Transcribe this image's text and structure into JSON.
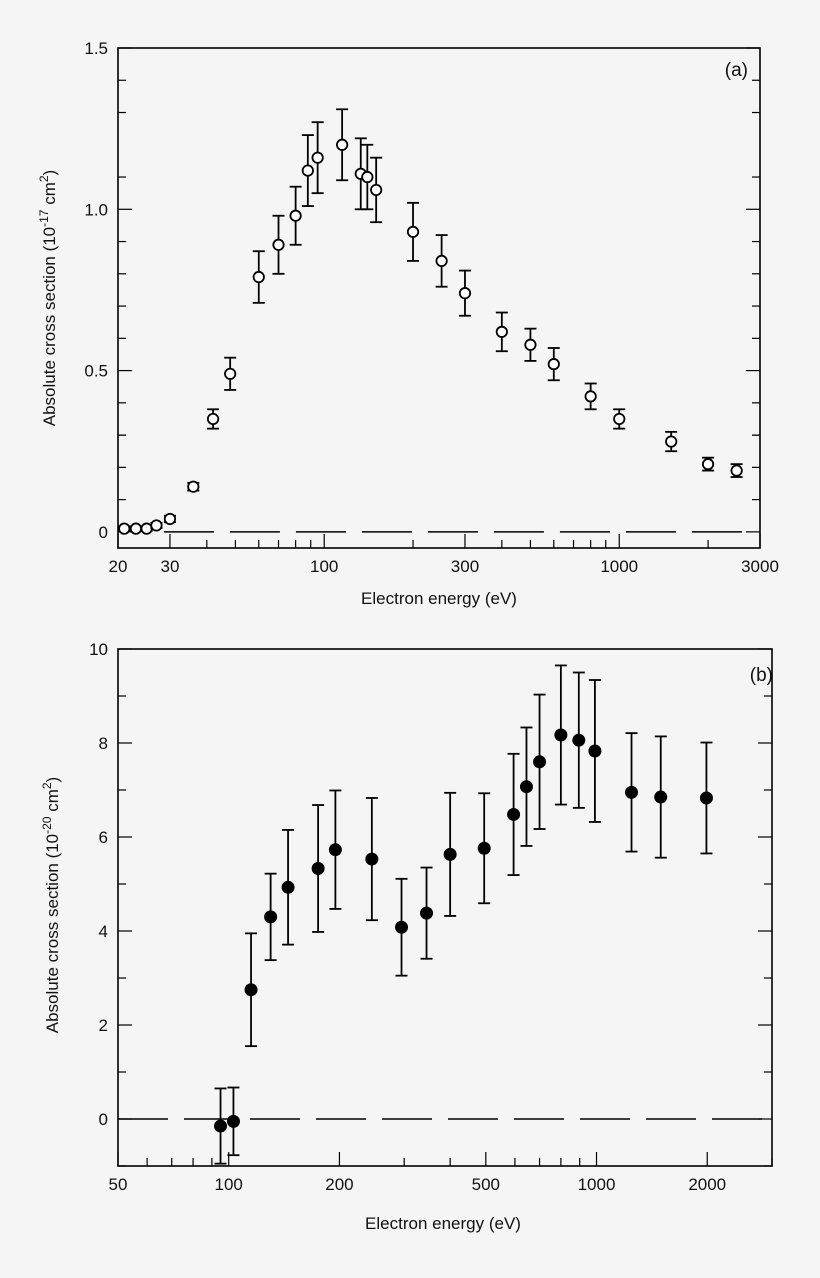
{
  "chart_data": [
    {
      "id": "a",
      "type": "scatter",
      "panel_label": "(a)",
      "xlabel": "Electron energy (eV)",
      "ylabel_main": "Absolute cross section (10",
      "ylabel_exp": "-17",
      "ylabel_mid": " cm",
      "ylabel_sq": "2",
      "ylabel_end": ")",
      "xscale": "log",
      "xlim": [
        20,
        3000
      ],
      "ylim": [
        -0.05,
        1.5
      ],
      "x_ticks": [
        20,
        30,
        100,
        300,
        1000,
        3000
      ],
      "x_tick_labels": [
        "20",
        "30",
        "100",
        "300",
        "1000",
        "3000"
      ],
      "y_ticks": [
        0,
        0.5,
        1.0,
        1.5
      ],
      "y_tick_labels": [
        "0",
        "0.5",
        "1.0",
        "1.5"
      ],
      "y_minor_step": 0.1,
      "marker": "open-circle",
      "zero_line": true,
      "series": [
        {
          "points": [
            {
              "x": 21,
              "y": 0.01,
              "err": 0.007
            },
            {
              "x": 23,
              "y": 0.01,
              "err": 0.007
            },
            {
              "x": 25,
              "y": 0.01,
              "err": 0.007
            },
            {
              "x": 27,
              "y": 0.02,
              "err": 0.008
            },
            {
              "x": 30,
              "y": 0.04,
              "err": 0.01
            },
            {
              "x": 36,
              "y": 0.14,
              "err": 0.012
            },
            {
              "x": 42,
              "y": 0.35,
              "err": 0.03
            },
            {
              "x": 48,
              "y": 0.49,
              "err": 0.05
            },
            {
              "x": 60,
              "y": 0.79,
              "err": 0.08
            },
            {
              "x": 70,
              "y": 0.89,
              "err": 0.09
            },
            {
              "x": 80,
              "y": 0.98,
              "err": 0.09
            },
            {
              "x": 88,
              "y": 1.12,
              "err": 0.11
            },
            {
              "x": 95,
              "y": 1.16,
              "err": 0.11
            },
            {
              "x": 115,
              "y": 1.2,
              "err": 0.11
            },
            {
              "x": 133,
              "y": 1.11,
              "err": 0.11
            },
            {
              "x": 140,
              "y": 1.1,
              "err": 0.1
            },
            {
              "x": 150,
              "y": 1.06,
              "err": 0.1
            },
            {
              "x": 200,
              "y": 0.93,
              "err": 0.09
            },
            {
              "x": 250,
              "y": 0.84,
              "err": 0.08
            },
            {
              "x": 300,
              "y": 0.74,
              "err": 0.07
            },
            {
              "x": 400,
              "y": 0.62,
              "err": 0.06
            },
            {
              "x": 500,
              "y": 0.58,
              "err": 0.05
            },
            {
              "x": 600,
              "y": 0.52,
              "err": 0.05
            },
            {
              "x": 800,
              "y": 0.42,
              "err": 0.04
            },
            {
              "x": 1000,
              "y": 0.35,
              "err": 0.03
            },
            {
              "x": 1500,
              "y": 0.28,
              "err": 0.03
            },
            {
              "x": 2000,
              "y": 0.21,
              "err": 0.02
            },
            {
              "x": 2500,
              "y": 0.19,
              "err": 0.02
            }
          ]
        }
      ]
    },
    {
      "id": "b",
      "type": "scatter",
      "panel_label": "(b)",
      "xlabel": "Electron energy (eV)",
      "ylabel_main": "Absolute cross section (10",
      "ylabel_exp": "-20",
      "ylabel_mid": " cm",
      "ylabel_sq": "2",
      "ylabel_end": ")",
      "xscale": "log",
      "xlim": [
        50,
        3000
      ],
      "ylim": [
        -1,
        10
      ],
      "x_ticks": [
        50,
        100,
        200,
        500,
        1000,
        2000
      ],
      "x_tick_labels": [
        "50",
        "100",
        "200",
        "500",
        "1000",
        "2000"
      ],
      "y_ticks": [
        0,
        2,
        4,
        6,
        8,
        10
      ],
      "y_tick_labels": [
        "0",
        "2",
        "4",
        "6",
        "8",
        "10"
      ],
      "y_minor_step": 1,
      "marker": "filled-circle",
      "zero_line": true,
      "series": [
        {
          "points": [
            {
              "x": 95,
              "y": -0.15,
              "err": 0.8
            },
            {
              "x": 103,
              "y": -0.05,
              "err": 0.72
            },
            {
              "x": 115,
              "y": 2.75,
              "err": 1.2
            },
            {
              "x": 130,
              "y": 4.3,
              "err": 0.92
            },
            {
              "x": 145,
              "y": 4.93,
              "err": 1.22
            },
            {
              "x": 175,
              "y": 5.33,
              "err": 1.35
            },
            {
              "x": 195,
              "y": 5.73,
              "err": 1.26
            },
            {
              "x": 245,
              "y": 5.53,
              "err": 1.3
            },
            {
              "x": 295,
              "y": 4.08,
              "err": 1.03
            },
            {
              "x": 345,
              "y": 4.38,
              "err": 0.97
            },
            {
              "x": 400,
              "y": 5.63,
              "err": 1.31
            },
            {
              "x": 495,
              "y": 5.76,
              "err": 1.17
            },
            {
              "x": 595,
              "y": 6.48,
              "err": 1.29
            },
            {
              "x": 645,
              "y": 7.07,
              "err": 1.26
            },
            {
              "x": 700,
              "y": 7.6,
              "err": 1.43
            },
            {
              "x": 800,
              "y": 8.17,
              "err": 1.48
            },
            {
              "x": 895,
              "y": 8.06,
              "err": 1.44
            },
            {
              "x": 990,
              "y": 7.83,
              "err": 1.51
            },
            {
              "x": 1245,
              "y": 6.95,
              "err": 1.26
            },
            {
              "x": 1495,
              "y": 6.85,
              "err": 1.29
            },
            {
              "x": 1990,
              "y": 6.83,
              "err": 1.18
            }
          ]
        }
      ]
    }
  ]
}
